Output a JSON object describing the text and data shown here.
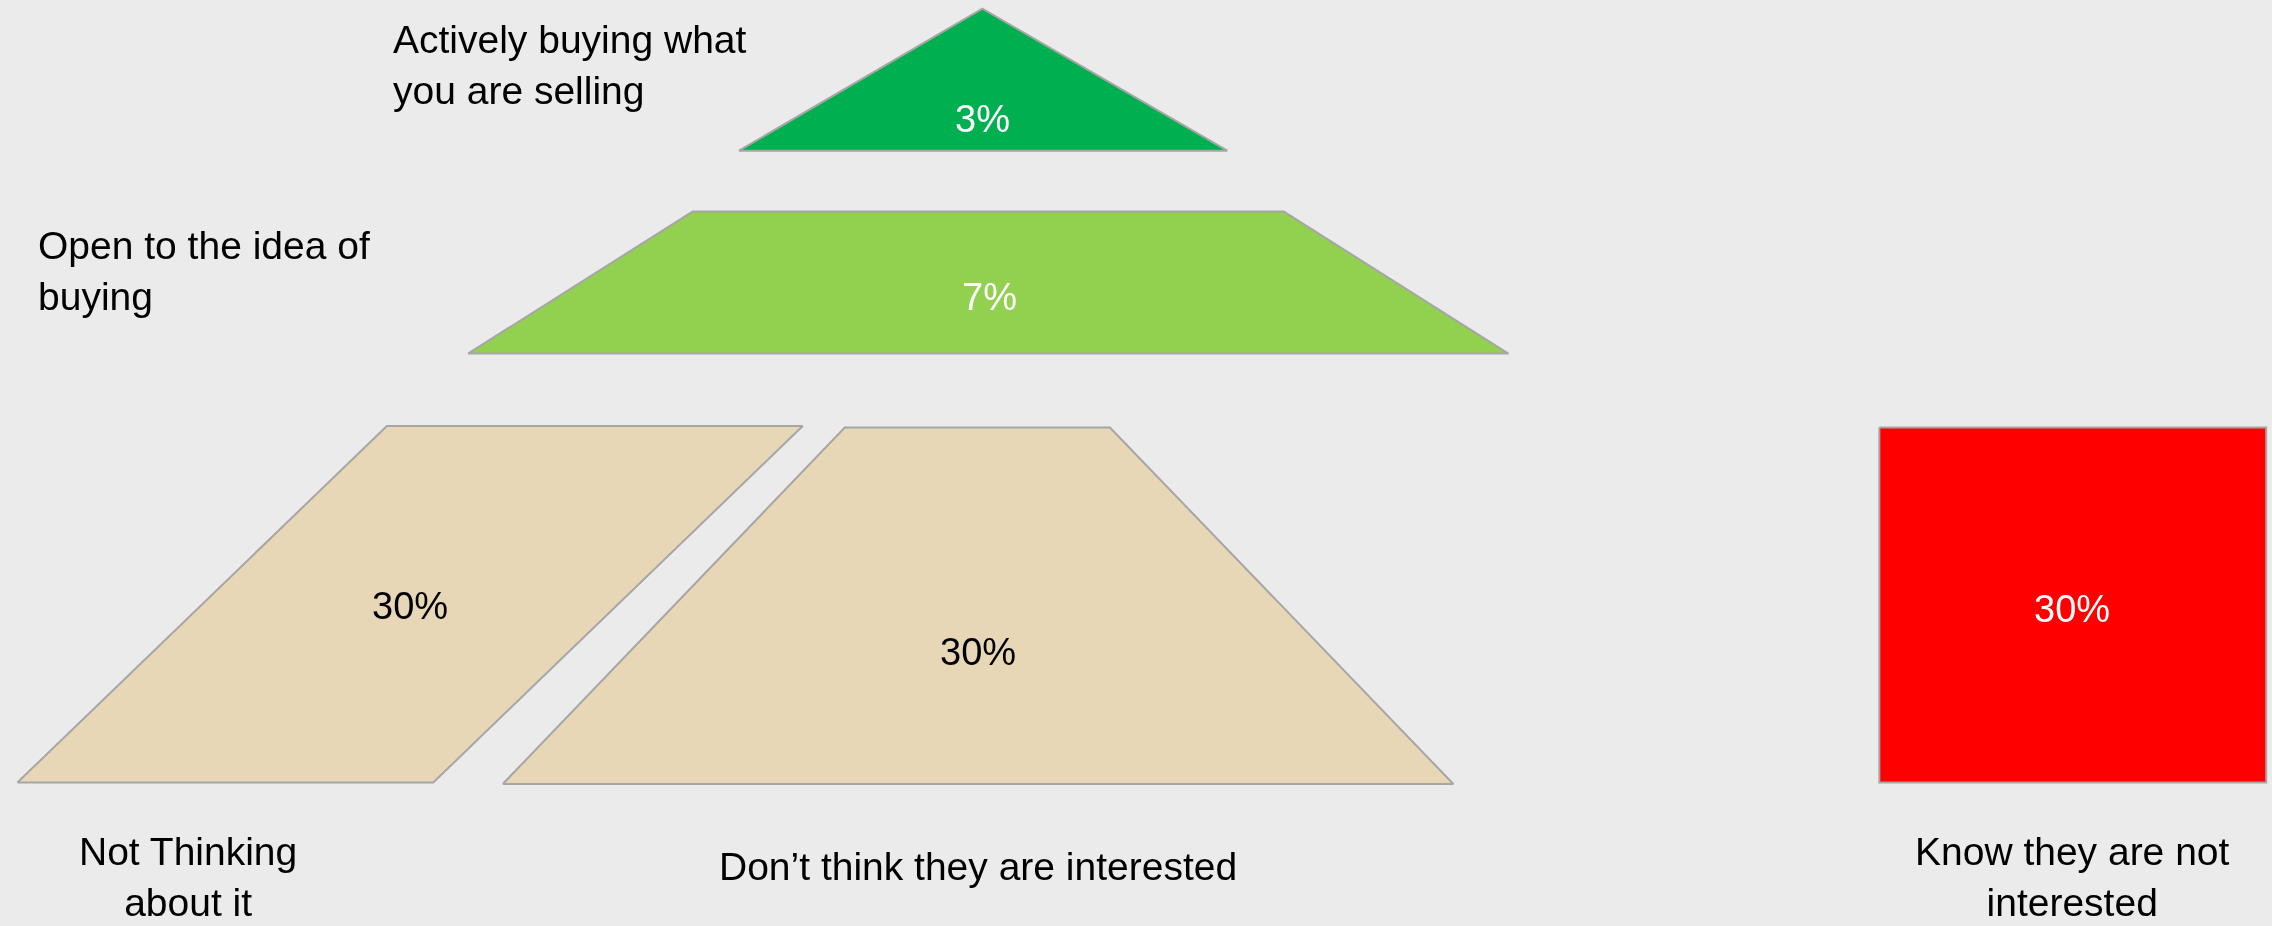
{
  "chart_data": {
    "type": "other",
    "categories": [
      "Actively buying what\nyou are selling",
      "Open to the idea of\nbuying",
      "Not Thinking\nabout it",
      "Don’t think they are interested",
      "Know they are not\ninterested"
    ],
    "values": [
      3,
      7,
      30,
      30,
      30
    ],
    "value_labels": [
      "3%",
      "7%",
      "30%",
      "30%",
      "30%"
    ],
    "colors": [
      "#00b050",
      "#92d050",
      "#e8d7b6",
      "#e8d7b6",
      "#ff0000"
    ]
  }
}
